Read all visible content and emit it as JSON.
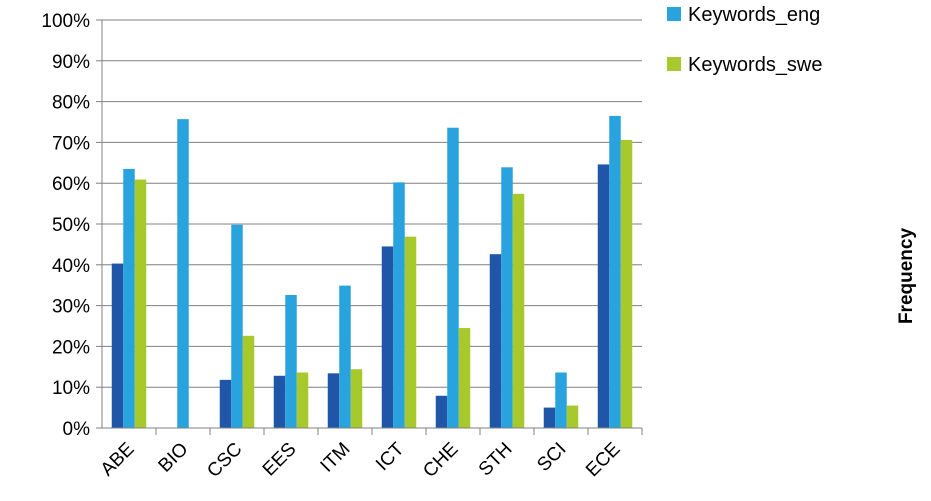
{
  "chart_data": {
    "type": "bar",
    "categories": [
      "ABE",
      "BIO",
      "CSC",
      "EES",
      "ITM",
      "ICT",
      "CHE",
      "STH",
      "SCI",
      "ECE"
    ],
    "series": [
      {
        "color": "#1f56a8",
        "values": [
          40.3,
          0,
          11.8,
          12.8,
          13.4,
          44.5,
          7.9,
          42.6,
          5.0,
          64.6
        ]
      },
      {
        "name": "Keywords_eng",
        "color": "#29a3dd",
        "values": [
          63.5,
          75.7,
          49.8,
          32.6,
          34.9,
          60.2,
          73.6,
          63.9,
          13.6,
          76.5
        ]
      },
      {
        "name": "Keywords_swe",
        "color": "#a8c92b",
        "values": [
          60.9,
          0,
          22.6,
          13.6,
          14.4,
          46.9,
          24.5,
          57.4,
          5.5,
          70.6
        ]
      }
    ],
    "y_ticks": [
      "0%",
      "10%",
      "20%",
      "30%",
      "40%",
      "50%",
      "60%",
      "70%",
      "80%",
      "90%",
      "100%"
    ],
    "ylim": [
      0,
      100
    ],
    "grid": true,
    "legend_position": "top-right",
    "side_label": "Frequency"
  }
}
